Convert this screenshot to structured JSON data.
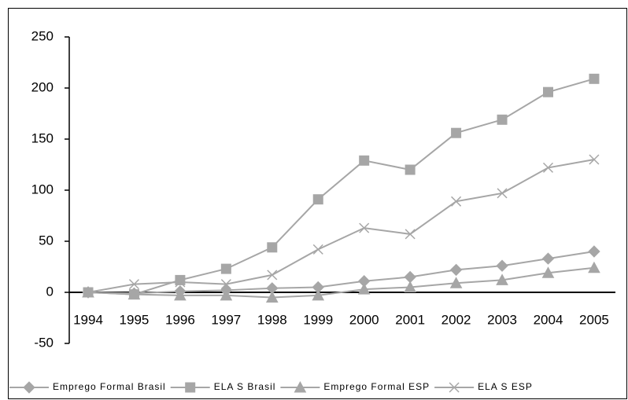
{
  "chart_data": {
    "type": "line",
    "categories": [
      "1994",
      "1995",
      "1996",
      "1997",
      "1998",
      "1999",
      "2000",
      "2001",
      "2002",
      "2003",
      "2004",
      "2005"
    ],
    "series": [
      {
        "name": "Emprego Formal Brasil",
        "color": "#a6a6a6",
        "marker": "diamond",
        "values": [
          0,
          -1,
          1,
          2,
          4,
          5,
          11,
          15,
          22,
          26,
          33,
          40
        ]
      },
      {
        "name": "ELA S Brasil",
        "color": "#a6a6a6",
        "marker": "square",
        "values": [
          0,
          -2,
          12,
          23,
          44,
          91,
          129,
          120,
          156,
          169,
          196,
          209
        ]
      },
      {
        "name": "Emprego Formal ESP",
        "color": "#a6a6a6",
        "marker": "triangle",
        "values": [
          0,
          -2,
          -3,
          -3,
          -5,
          -3,
          3,
          5,
          9,
          12,
          19,
          24
        ]
      },
      {
        "name": "ELA S ESP",
        "color": "#a6a6a6",
        "marker": "x",
        "values": [
          0,
          8,
          10,
          8,
          17,
          42,
          63,
          57,
          89,
          97,
          122,
          130
        ]
      }
    ],
    "ylim": [
      -50,
      250
    ],
    "yticks": [
      -50,
      0,
      50,
      100,
      150,
      200,
      250
    ],
    "grid": false,
    "legend": "bottom"
  }
}
